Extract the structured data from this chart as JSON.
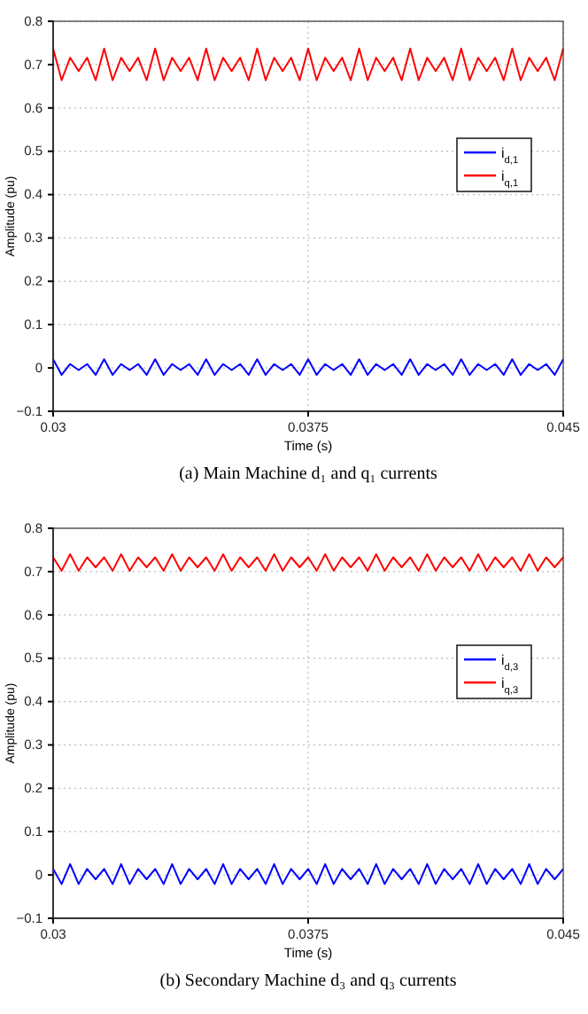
{
  "chart_data": [
    {
      "type": "line",
      "title": "(a) Main Machine d₁ and q₁ currents",
      "xlabel": "Time (s)",
      "ylabel": "Amplitude (pu)",
      "x": [
        0.03,
        0.03025,
        0.0305,
        0.03075,
        0.031,
        0.03125,
        0.0315,
        0.03175,
        0.032,
        0.03225,
        0.0325,
        0.03275,
        0.033,
        0.03325,
        0.0335,
        0.03375,
        0.034,
        0.03425,
        0.0345,
        0.03475,
        0.035,
        0.03525,
        0.0355,
        0.03575,
        0.036,
        0.03625,
        0.0365,
        0.03675,
        0.037,
        0.03725,
        0.0375,
        0.03775,
        0.038,
        0.03825,
        0.0385,
        0.03875,
        0.039,
        0.03925,
        0.0395,
        0.03975,
        0.04,
        0.04025,
        0.0405,
        0.04075,
        0.041,
        0.04125,
        0.0415,
        0.04175,
        0.042,
        0.04225,
        0.0425,
        0.04275,
        0.043,
        0.04325,
        0.0435,
        0.04375,
        0.044,
        0.04425,
        0.0445,
        0.04475,
        0.045
      ],
      "series": [
        {
          "name": "i$_{d,1}$",
          "color": "#0000ff",
          "values": [
            0.02,
            -0.016,
            0.009,
            -0.005,
            0.009,
            -0.016,
            0.02,
            -0.016,
            0.009,
            -0.005,
            0.009,
            -0.016,
            0.02,
            -0.016,
            0.009,
            -0.005,
            0.009,
            -0.016,
            0.02,
            -0.016,
            0.009,
            -0.005,
            0.009,
            -0.016,
            0.02,
            -0.016,
            0.009,
            -0.005,
            0.009,
            -0.016,
            0.02,
            -0.016,
            0.009,
            -0.005,
            0.009,
            -0.016,
            0.02,
            -0.016,
            0.009,
            -0.005,
            0.009,
            -0.016,
            0.02,
            -0.016,
            0.009,
            -0.005,
            0.009,
            -0.016,
            0.02,
            -0.016,
            0.009,
            -0.005,
            0.009,
            -0.016,
            0.02,
            -0.016,
            0.009,
            -0.005,
            0.009,
            -0.016,
            0.02
          ]
        },
        {
          "name": "i$_{q,1}$",
          "color": "#ff0000",
          "values": [
            0.737,
            0.664,
            0.716,
            0.685,
            0.716,
            0.664,
            0.737,
            0.664,
            0.716,
            0.685,
            0.716,
            0.664,
            0.737,
            0.664,
            0.716,
            0.685,
            0.716,
            0.664,
            0.737,
            0.664,
            0.716,
            0.685,
            0.716,
            0.664,
            0.737,
            0.664,
            0.716,
            0.685,
            0.716,
            0.664,
            0.737,
            0.664,
            0.716,
            0.685,
            0.716,
            0.664,
            0.737,
            0.664,
            0.716,
            0.685,
            0.716,
            0.664,
            0.737,
            0.664,
            0.716,
            0.685,
            0.716,
            0.664,
            0.737,
            0.664,
            0.716,
            0.685,
            0.716,
            0.664,
            0.737,
            0.664,
            0.716,
            0.685,
            0.716,
            0.664,
            0.737
          ]
        }
      ],
      "xlim": [
        0.03,
        0.045
      ],
      "xticks": [
        0.03,
        0.0375,
        0.045
      ],
      "ylim": [
        -0.1,
        0.8
      ],
      "yticks": [
        -0.1,
        0,
        0.1,
        0.2,
        0.3,
        0.4,
        0.5,
        0.6,
        0.7,
        0.8
      ],
      "grid": true,
      "legend": "right",
      "line_style": "solid"
    },
    {
      "type": "line",
      "title": "(b) Secondary Machine d₃ and q₃ currents",
      "xlabel": "Time (s)",
      "ylabel": "Amplitude (pu)",
      "x": [
        0.03,
        0.03025,
        0.0305,
        0.03075,
        0.031,
        0.03125,
        0.0315,
        0.03175,
        0.032,
        0.03225,
        0.0325,
        0.03275,
        0.033,
        0.03325,
        0.0335,
        0.03375,
        0.034,
        0.03425,
        0.0345,
        0.03475,
        0.035,
        0.03525,
        0.0355,
        0.03575,
        0.036,
        0.03625,
        0.0365,
        0.03675,
        0.037,
        0.03725,
        0.0375,
        0.03775,
        0.038,
        0.03825,
        0.0385,
        0.03875,
        0.039,
        0.03925,
        0.0395,
        0.03975,
        0.04,
        0.04025,
        0.0405,
        0.04075,
        0.041,
        0.04125,
        0.0415,
        0.04175,
        0.042,
        0.04225,
        0.0425,
        0.04275,
        0.043,
        0.04325,
        0.0435,
        0.04375,
        0.044,
        0.04425,
        0.0445,
        0.04475,
        0.045
      ],
      "series": [
        {
          "name": "i$_{d,3}$",
          "color": "#0000ff",
          "values": [
            0.014,
            -0.021,
            0.025,
            -0.021,
            0.014,
            -0.01,
            0.014,
            -0.021,
            0.025,
            -0.021,
            0.014,
            -0.01,
            0.014,
            -0.021,
            0.025,
            -0.021,
            0.014,
            -0.01,
            0.014,
            -0.021,
            0.025,
            -0.021,
            0.014,
            -0.01,
            0.014,
            -0.021,
            0.025,
            -0.021,
            0.014,
            -0.01,
            0.014,
            -0.021,
            0.025,
            -0.021,
            0.014,
            -0.01,
            0.014,
            -0.021,
            0.025,
            -0.021,
            0.014,
            -0.01,
            0.014,
            -0.021,
            0.025,
            -0.021,
            0.014,
            -0.01,
            0.014,
            -0.021,
            0.025,
            -0.021,
            0.014,
            -0.01,
            0.014,
            -0.021,
            0.025,
            -0.021,
            0.014,
            -0.01,
            0.014
          ]
        },
        {
          "name": "i$_{q,3}$",
          "color": "#ff0000",
          "values": [
            0.733,
            0.702,
            0.74,
            0.702,
            0.733,
            0.71,
            0.733,
            0.702,
            0.74,
            0.702,
            0.733,
            0.71,
            0.733,
            0.702,
            0.74,
            0.702,
            0.733,
            0.71,
            0.733,
            0.702,
            0.74,
            0.702,
            0.733,
            0.71,
            0.733,
            0.702,
            0.74,
            0.702,
            0.733,
            0.71,
            0.733,
            0.702,
            0.74,
            0.702,
            0.733,
            0.71,
            0.733,
            0.702,
            0.74,
            0.702,
            0.733,
            0.71,
            0.733,
            0.702,
            0.74,
            0.702,
            0.733,
            0.71,
            0.733,
            0.702,
            0.74,
            0.702,
            0.733,
            0.71,
            0.733,
            0.702,
            0.74,
            0.702,
            0.733,
            0.71,
            0.733
          ]
        }
      ],
      "xlim": [
        0.03,
        0.045
      ],
      "xticks": [
        0.03,
        0.0375,
        0.045
      ],
      "ylim": [
        -0.1,
        0.8
      ],
      "yticks": [
        -0.1,
        0,
        0.1,
        0.2,
        0.3,
        0.4,
        0.5,
        0.6,
        0.7,
        0.8
      ],
      "grid": true,
      "legend": "right",
      "line_style": "solid"
    }
  ]
}
